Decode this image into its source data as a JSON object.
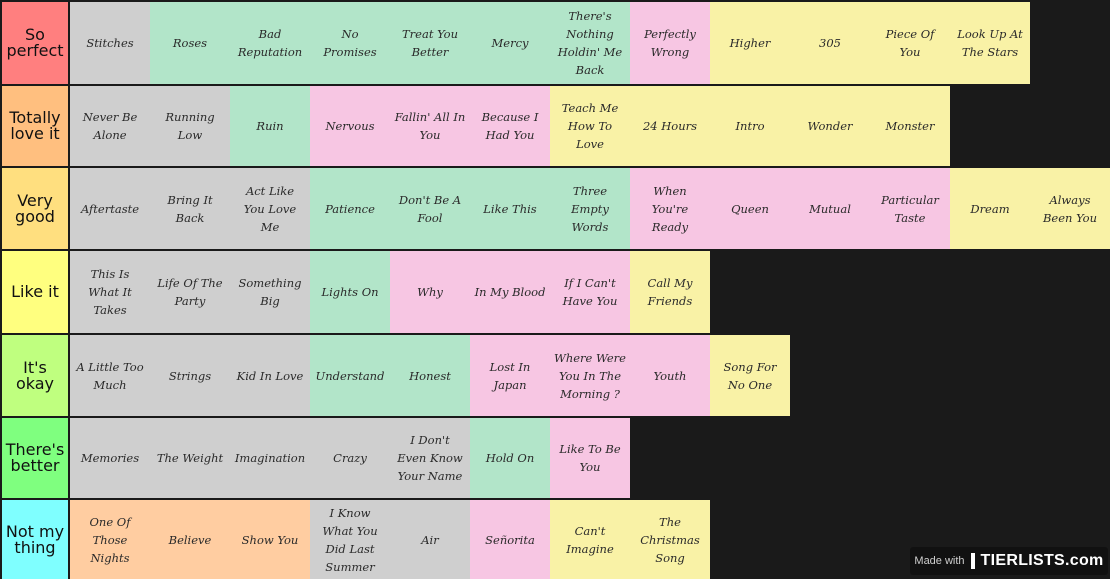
{
  "colors": {
    "background": "#1a1a1a",
    "gray": "#cfcfcf",
    "green": "#b2e5c9",
    "pink": "#f7c6e3",
    "yellow": "#f9f2a6",
    "peach": "#ffcda1"
  },
  "tiers": [
    {
      "label": "So perfect",
      "color": "#ff7f7f",
      "items": [
        {
          "text": "Stitches",
          "color": "gray"
        },
        {
          "text": "Roses",
          "color": "green"
        },
        {
          "text": "Bad Reputation",
          "color": "green"
        },
        {
          "text": "No Promises",
          "color": "green"
        },
        {
          "text": "Treat You Better",
          "color": "green"
        },
        {
          "text": "Mercy",
          "color": "green"
        },
        {
          "text": "There's Nothing Holdin' Me Back",
          "color": "green"
        },
        {
          "text": "Perfectly Wrong",
          "color": "pink"
        },
        {
          "text": "Higher",
          "color": "yellow"
        },
        {
          "text": "305",
          "color": "yellow"
        },
        {
          "text": "Piece Of You",
          "color": "yellow"
        },
        {
          "text": "Look Up At The Stars",
          "color": "yellow"
        }
      ]
    },
    {
      "label": "Totally love it",
      "color": "#ffbf7f",
      "items": [
        {
          "text": "Never Be Alone",
          "color": "gray"
        },
        {
          "text": "Running Low",
          "color": "gray"
        },
        {
          "text": "Ruin",
          "color": "green"
        },
        {
          "text": "Nervous",
          "color": "pink"
        },
        {
          "text": "Fallin' All In You",
          "color": "pink"
        },
        {
          "text": "Because I Had You",
          "color": "pink"
        },
        {
          "text": "Teach Me How To Love",
          "color": "yellow"
        },
        {
          "text": "24 Hours",
          "color": "yellow"
        },
        {
          "text": "Intro",
          "color": "yellow"
        },
        {
          "text": "Wonder",
          "color": "yellow"
        },
        {
          "text": "Monster",
          "color": "yellow"
        }
      ]
    },
    {
      "label": "Very good",
      "color": "#ffdf7f",
      "items": [
        {
          "text": "Aftertaste",
          "color": "gray"
        },
        {
          "text": "Bring It Back",
          "color": "gray"
        },
        {
          "text": "Act Like You Love Me",
          "color": "gray"
        },
        {
          "text": "Patience",
          "color": "green"
        },
        {
          "text": "Don't Be A Fool",
          "color": "green"
        },
        {
          "text": "Like This",
          "color": "green"
        },
        {
          "text": "Three Empty Words",
          "color": "green"
        },
        {
          "text": "When You're Ready",
          "color": "pink"
        },
        {
          "text": "Queen",
          "color": "pink"
        },
        {
          "text": "Mutual",
          "color": "pink"
        },
        {
          "text": "Particular Taste",
          "color": "pink"
        },
        {
          "text": "Dream",
          "color": "yellow"
        },
        {
          "text": "Always Been You",
          "color": "yellow"
        }
      ]
    },
    {
      "label": "Like it",
      "color": "#ffff7f",
      "items": [
        {
          "text": "This Is What It Takes",
          "color": "gray"
        },
        {
          "text": "Life Of The Party",
          "color": "gray"
        },
        {
          "text": "Something Big",
          "color": "gray"
        },
        {
          "text": "Lights On",
          "color": "green"
        },
        {
          "text": "Why",
          "color": "pink"
        },
        {
          "text": "In My Blood",
          "color": "pink"
        },
        {
          "text": "If I Can't Have You",
          "color": "pink"
        },
        {
          "text": "Call My Friends",
          "color": "yellow"
        }
      ]
    },
    {
      "label": "It's okay",
      "color": "#bfff7f",
      "items": [
        {
          "text": "A Little Too Much",
          "color": "gray"
        },
        {
          "text": "Strings",
          "color": "gray"
        },
        {
          "text": "Kid In Love",
          "color": "gray"
        },
        {
          "text": "Understand",
          "color": "green"
        },
        {
          "text": "Honest",
          "color": "green"
        },
        {
          "text": "Lost In Japan",
          "color": "pink"
        },
        {
          "text": "Where Were You In The Morning ?",
          "color": "pink"
        },
        {
          "text": "Youth",
          "color": "pink"
        },
        {
          "text": "Song For No One",
          "color": "yellow"
        }
      ]
    },
    {
      "label": "There's better",
      "color": "#7fff7f",
      "items": [
        {
          "text": "Memories",
          "color": "gray"
        },
        {
          "text": "The Weight",
          "color": "gray"
        },
        {
          "text": "Imagination",
          "color": "gray"
        },
        {
          "text": "Crazy",
          "color": "gray"
        },
        {
          "text": "I Don't Even Know Your Name",
          "color": "gray"
        },
        {
          "text": "Hold On",
          "color": "green"
        },
        {
          "text": "Like To Be You",
          "color": "pink"
        }
      ]
    },
    {
      "label": "Not my thing",
      "color": "#7fffff",
      "items": [
        {
          "text": "One Of Those Nights",
          "color": "peach"
        },
        {
          "text": "Believe",
          "color": "peach"
        },
        {
          "text": "Show You",
          "color": "peach"
        },
        {
          "text": "I Know What You Did Last Summer",
          "color": "gray"
        },
        {
          "text": "Air",
          "color": "gray"
        },
        {
          "text": "Señorita",
          "color": "pink"
        },
        {
          "text": "Can't Imagine",
          "color": "yellow"
        },
        {
          "text": "The Christmas Song",
          "color": "yellow"
        }
      ]
    }
  ],
  "watermark": {
    "made_with": "Made with",
    "brand": "TIERLISTS.com"
  }
}
